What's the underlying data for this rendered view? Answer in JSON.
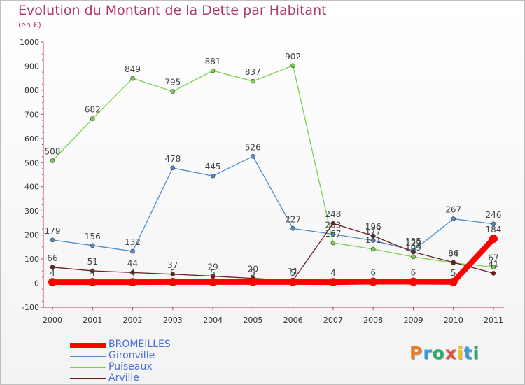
{
  "title": "Evolution du Montant de la Dette par Habitant",
  "unit": "(en €)",
  "logo": {
    "text": "Proxiti",
    "colors": [
      "#e67e22",
      "#3498db",
      "#27ae60",
      "#e74c3c",
      "#f1c40f",
      "#3498db",
      "#27ae60"
    ]
  },
  "chart_data": {
    "type": "line",
    "x": [
      "2000",
      "2001",
      "2002",
      "2003",
      "2004",
      "2005",
      "2006",
      "2007",
      "2008",
      "2009",
      "2010",
      "2011"
    ],
    "ylim": [
      -100,
      1000
    ],
    "yticks": [
      "-100",
      "0",
      "100",
      "200",
      "300",
      "400",
      "500",
      "600",
      "700",
      "800",
      "900",
      "1000"
    ],
    "grid": false,
    "legend_position": "bottom-left",
    "series": [
      {
        "name": "BROMEILLES",
        "color": "#ff0000",
        "values": [
          4,
          4,
          4,
          5,
          5,
          5,
          5,
          4,
          6,
          6,
          5,
          184
        ],
        "labels": [
          "4",
          "4",
          "4",
          "5",
          "5",
          "5",
          "5",
          "4",
          "6",
          "6",
          "5",
          "184"
        ]
      },
      {
        "name": "Gironville",
        "color": "#4f8ec9",
        "values": [
          179,
          156,
          132,
          478,
          445,
          526,
          227,
          203,
          177,
          135,
          267,
          246
        ],
        "labels": [
          "179",
          "156",
          "132",
          "478",
          "445",
          "526",
          "227",
          "203",
          "177",
          "135",
          "267",
          "246"
        ]
      },
      {
        "name": "Puiseaux",
        "color": "#7bd14f",
        "values": [
          508,
          682,
          849,
          795,
          881,
          837,
          902,
          167,
          141,
          109,
          84,
          67
        ],
        "labels": [
          "508",
          "682",
          "849",
          "795",
          "881",
          "837",
          "902",
          "167",
          "141",
          "109",
          "84",
          "67"
        ]
      },
      {
        "name": "Arville",
        "color": "#6b1e1e",
        "values": [
          66,
          51,
          44,
          37,
          29,
          20,
          11,
          248,
          196,
          129,
          86,
          41
        ],
        "labels": [
          "66",
          "51",
          "44",
          "37",
          "29",
          "20",
          "11",
          "248",
          "196",
          "129",
          "86",
          "41"
        ]
      }
    ]
  }
}
